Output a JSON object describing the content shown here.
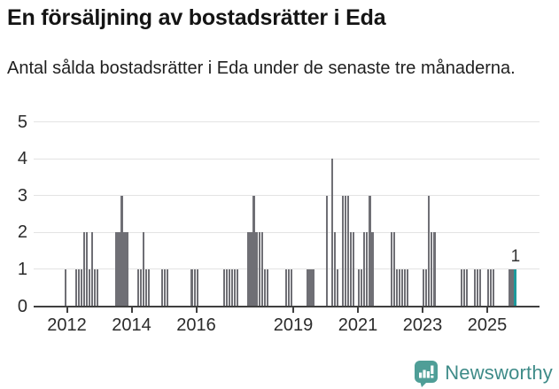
{
  "title": "En försäljning av bostadsrätter i Eda",
  "subtitle": "Antal sålda bostadsrätter i Eda under de senaste tre månaderna.",
  "branding": {
    "logo_text": "Newsworthy"
  },
  "chart_data": {
    "type": "bar",
    "title": "En försäljning av bostadsrätter i Eda",
    "subtitle": "Antal sålda bostadsrätter i Eda under de senaste tre månaderna.",
    "ylabel": "",
    "xlabel": "",
    "ylim": [
      0,
      5
    ],
    "y_ticks": [
      0,
      1,
      2,
      3,
      4,
      5
    ],
    "x_tick_years": [
      2012,
      2014,
      2016,
      2019,
      2021,
      2023,
      2025
    ],
    "grid": "horizontal",
    "start_month": "2011-12",
    "frequency": "monthly",
    "last_value_label": "1",
    "highlight_last_bar": true,
    "colors": {
      "bar": "#6f6f75",
      "highlight": "#1d999b",
      "grid": "#e3e3e3",
      "axis": "#404040",
      "brand_icon": "#4f9e97",
      "brand_text": "#3e8b88"
    },
    "values": [
      1,
      0,
      0,
      0,
      1,
      1,
      1,
      2,
      2,
      1,
      2,
      1,
      1,
      0,
      0,
      0,
      0,
      0,
      0,
      2,
      2,
      3,
      2,
      2,
      0,
      0,
      0,
      1,
      1,
      2,
      1,
      1,
      0,
      0,
      0,
      0,
      1,
      1,
      1,
      0,
      0,
      0,
      0,
      0,
      0,
      0,
      0,
      1,
      1,
      1,
      0,
      0,
      0,
      0,
      0,
      0,
      0,
      0,
      0,
      1,
      1,
      1,
      1,
      1,
      1,
      0,
      0,
      0,
      2,
      2,
      3,
      2,
      2,
      2,
      1,
      1,
      0,
      0,
      0,
      0,
      0,
      0,
      1,
      1,
      1,
      0,
      0,
      0,
      0,
      0,
      1,
      1,
      1,
      0,
      0,
      0,
      0,
      3,
      0,
      4,
      2,
      1,
      0,
      3,
      3,
      3,
      2,
      2,
      0,
      1,
      1,
      2,
      2,
      3,
      2,
      0,
      0,
      0,
      0,
      0,
      0,
      2,
      2,
      1,
      1,
      1,
      1,
      1,
      0,
      0,
      0,
      0,
      0,
      1,
      1,
      3,
      2,
      2,
      0,
      0,
      0,
      0,
      0,
      0,
      0,
      0,
      0,
      1,
      1,
      1,
      0,
      0,
      1,
      1,
      1,
      0,
      0,
      1,
      1,
      1,
      0,
      0,
      0,
      0,
      0,
      1,
      1,
      1
    ]
  }
}
